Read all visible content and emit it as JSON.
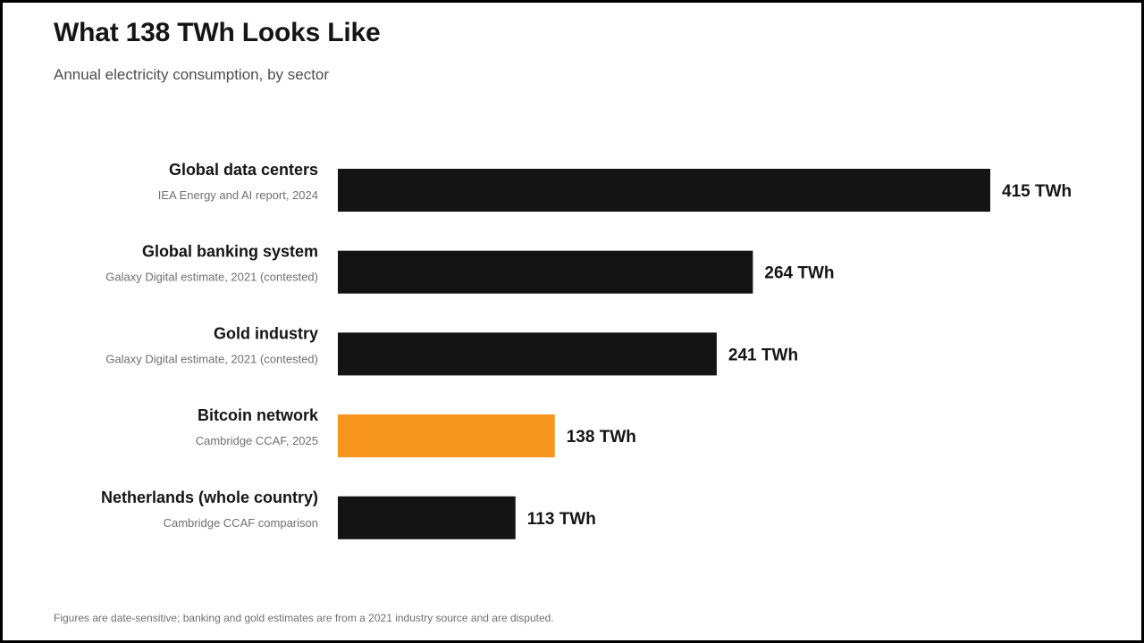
{
  "header": {
    "title": "What 138 TWh Looks Like",
    "subtitle": "Annual electricity consumption, by sector"
  },
  "footnote": "Figures are date-sensitive; banking and gold estimates are from a 2021 industry source and are disputed.",
  "colors": {
    "bar": "#141414",
    "highlight": "#f7941d",
    "text": "#151515",
    "muted": "#6f6f6f"
  },
  "chart_data": {
    "type": "bar",
    "orientation": "horizontal",
    "title": "What 138 TWh Looks Like",
    "subtitle": "Annual electricity consumption, by sector",
    "categories": [
      "Global data centers",
      "Global banking system",
      "Gold industry",
      "Bitcoin network",
      "Netherlands (whole country)"
    ],
    "sources": [
      "IEA Energy and AI report, 2024",
      "Galaxy Digital estimate, 2021 (contested)",
      "Galaxy Digital estimate, 2021 (contested)",
      "Cambridge CCAF, 2025",
      "Cambridge CCAF comparison"
    ],
    "values": [
      415,
      264,
      241,
      138,
      113
    ],
    "value_labels": [
      "415 TWh",
      "264 TWh",
      "241 TWh",
      "138 TWh",
      "113 TWh"
    ],
    "highlight_index": 3,
    "unit": "TWh",
    "xlim": [
      0,
      415
    ],
    "grid": false,
    "legend": "none"
  }
}
